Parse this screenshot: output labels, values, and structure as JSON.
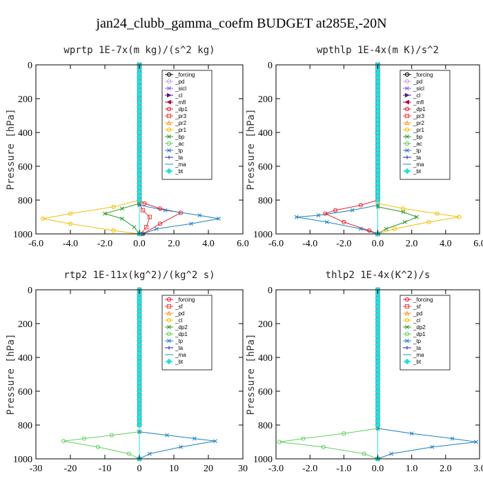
{
  "figure": {
    "title": "jan24_clubb_gamma_coefm  BUDGET at285E,-20N"
  },
  "chart_data": [
    {
      "type": "line",
      "title": "wprtp  1E-7x(m kg)/(s^2 kg)",
      "ylabel": "Pressure [hPa]",
      "xlim": [
        -6.0,
        6.0
      ],
      "xticks": [
        "-6.0",
        "-4.0",
        "-2.0",
        "0.0",
        "2.0",
        "4.0",
        "6.0"
      ],
      "ylim": [
        1000,
        0
      ],
      "yticks": [
        "0",
        "200",
        "400",
        "600",
        "800",
        "1000"
      ],
      "legend_position": "top-right",
      "series": [
        {
          "name": "_forcing",
          "color": "#000000",
          "marker": "o",
          "x": [
            0,
            0,
            0,
            0,
            0,
            0
          ],
          "y": [
            0,
            200,
            400,
            600,
            800,
            1000
          ]
        },
        {
          "name": "_pd",
          "color": "#c8a0e6",
          "marker": "o",
          "x": [
            0,
            0,
            0,
            0,
            0,
            0
          ],
          "y": [
            0,
            200,
            400,
            600,
            800,
            1000
          ]
        },
        {
          "name": "_sicl",
          "color": "#8a5fd0",
          "marker": "x",
          "x": [
            0,
            0,
            0,
            0,
            0,
            0
          ],
          "y": [
            0,
            200,
            400,
            600,
            800,
            1000
          ]
        },
        {
          "name": "_cl",
          "color": "#5a1a7a",
          "marker": ">",
          "x": [
            0,
            0,
            0,
            0,
            0,
            0
          ],
          "y": [
            0,
            200,
            400,
            600,
            800,
            1000
          ]
        },
        {
          "name": "_mfl",
          "color": "#b0004a",
          "marker": "<",
          "x": [
            0,
            0,
            0,
            0,
            0,
            0
          ],
          "y": [
            0,
            200,
            400,
            600,
            800,
            1000
          ]
        },
        {
          "name": "_dp1",
          "color": "#e0202a",
          "marker": "o",
          "x": [
            0,
            0,
            0.3,
            1.2,
            2.4,
            1.2,
            0.2
          ],
          "y": [
            0,
            800,
            820,
            850,
            875,
            940,
            1000
          ]
        },
        {
          "name": "_pr3",
          "color": "#e04040",
          "marker": "s",
          "x": [
            0,
            0,
            0.2,
            0.6,
            0.4,
            0.1
          ],
          "y": [
            0,
            820,
            860,
            900,
            960,
            1000
          ]
        },
        {
          "name": "_pr2",
          "color": "#f0a020",
          "marker": "^",
          "x": [
            0,
            0,
            0,
            0
          ],
          "y": [
            0,
            400,
            800,
            1000
          ]
        },
        {
          "name": "_pr1",
          "color": "#f0c000",
          "marker": "o",
          "x": [
            0,
            0,
            -1.5,
            -4.0,
            -5.6,
            -4.0,
            -1.5,
            0
          ],
          "y": [
            0,
            800,
            840,
            880,
            910,
            940,
            980,
            1000
          ]
        },
        {
          "name": "_bp",
          "color": "#2a9a2a",
          "marker": "x",
          "x": [
            0,
            0,
            -1.0,
            -2.0,
            -1.0,
            -0.3,
            0
          ],
          "y": [
            0,
            820,
            850,
            880,
            910,
            960,
            1000
          ]
        },
        {
          "name": "_ac",
          "color": "#60d060",
          "marker": "o",
          "x": [
            0,
            0,
            0,
            0
          ],
          "y": [
            0,
            400,
            800,
            1000
          ]
        },
        {
          "name": "_tp",
          "color": "#1a7fc0",
          "marker": "x",
          "x": [
            0,
            0,
            1.5,
            3.5,
            4.6,
            3.0,
            1.0,
            0.2
          ],
          "y": [
            0,
            830,
            860,
            890,
            910,
            940,
            970,
            1000
          ]
        },
        {
          "name": "_ta",
          "color": "#1a1ab0",
          "marker": "+",
          "x": [
            0,
            0,
            0,
            0
          ],
          "y": [
            0,
            400,
            800,
            1000
          ]
        },
        {
          "name": "_ma",
          "color": "#1a8fd0",
          "marker": "-",
          "x": [
            0,
            0,
            0,
            0
          ],
          "y": [
            0,
            400,
            800,
            1000
          ]
        },
        {
          "name": "_bt",
          "color": "#20e0e0",
          "marker": "D",
          "x": [
            0,
            0,
            0,
            0
          ],
          "y": [
            0,
            400,
            800,
            1000
          ]
        }
      ]
    },
    {
      "type": "line",
      "title": "wpthlp  1E-4x(m K)/s^2",
      "ylabel": "Pressure [hPa]",
      "xlim": [
        -6.0,
        6.0
      ],
      "xticks": [
        "-6.0",
        "-4.0",
        "-2.0",
        "0.0",
        "2.0",
        "4.0",
        "6.0"
      ],
      "ylim": [
        1000,
        0
      ],
      "yticks": [
        "0",
        "200",
        "400",
        "600",
        "800",
        "1000"
      ],
      "legend_position": "top-right",
      "series": [
        {
          "name": "_forcing",
          "color": "#000000",
          "marker": "o",
          "x": [
            0,
            0,
            0,
            0
          ],
          "y": [
            0,
            400,
            800,
            1000
          ]
        },
        {
          "name": "_pd",
          "color": "#c8a0e6",
          "marker": "o",
          "x": [
            0,
            0,
            0,
            0
          ],
          "y": [
            0,
            400,
            800,
            1000
          ]
        },
        {
          "name": "_sicl",
          "color": "#8a5fd0",
          "marker": "x",
          "x": [
            0,
            0,
            0,
            0
          ],
          "y": [
            0,
            400,
            800,
            1000
          ]
        },
        {
          "name": "_cl",
          "color": "#5a1a7a",
          "marker": ">",
          "x": [
            0,
            0,
            0,
            0
          ],
          "y": [
            0,
            400,
            800,
            1000
          ]
        },
        {
          "name": "_mfl",
          "color": "#b0004a",
          "marker": "<",
          "x": [
            0,
            0,
            0,
            0
          ],
          "y": [
            0,
            400,
            800,
            1000
          ]
        },
        {
          "name": "_dp1",
          "color": "#e0202a",
          "marker": "o",
          "x": [
            0,
            0,
            -1.0,
            -2.5,
            -3.1,
            -2.0,
            -0.5,
            0
          ],
          "y": [
            0,
            800,
            830,
            860,
            880,
            930,
            980,
            1000
          ]
        },
        {
          "name": "_pr3",
          "color": "#e04040",
          "marker": "s",
          "x": [
            0,
            0,
            0,
            0
          ],
          "y": [
            0,
            400,
            800,
            1000
          ]
        },
        {
          "name": "_pr2",
          "color": "#f0a020",
          "marker": "^",
          "x": [
            0,
            0,
            0,
            0
          ],
          "y": [
            0,
            400,
            800,
            1000
          ]
        },
        {
          "name": "_pr1",
          "color": "#f0c000",
          "marker": "o",
          "x": [
            0,
            0,
            1.5,
            3.5,
            4.8,
            3.0,
            1.0,
            0
          ],
          "y": [
            0,
            820,
            850,
            880,
            900,
            930,
            970,
            1000
          ]
        },
        {
          "name": "_bp",
          "color": "#2a9a2a",
          "marker": "x",
          "x": [
            0,
            0,
            1.5,
            2.3,
            1.6,
            0.5,
            0
          ],
          "y": [
            0,
            840,
            870,
            900,
            930,
            970,
            1000
          ]
        },
        {
          "name": "_ac",
          "color": "#60d060",
          "marker": "o",
          "x": [
            0,
            0,
            0,
            0
          ],
          "y": [
            0,
            400,
            800,
            1000
          ]
        },
        {
          "name": "_tp",
          "color": "#1a7fc0",
          "marker": "x",
          "x": [
            0,
            0,
            -1.5,
            -3.5,
            -4.8,
            -3.0,
            -1.0,
            0
          ],
          "y": [
            0,
            830,
            860,
            890,
            900,
            930,
            970,
            1000
          ]
        },
        {
          "name": "_ta",
          "color": "#1a1ab0",
          "marker": "+",
          "x": [
            0,
            0,
            0,
            0
          ],
          "y": [
            0,
            400,
            800,
            1000
          ]
        },
        {
          "name": "_ma",
          "color": "#1a8fd0",
          "marker": "-",
          "x": [
            0,
            0,
            0,
            0
          ],
          "y": [
            0,
            400,
            800,
            1000
          ]
        },
        {
          "name": "_bt",
          "color": "#20e0e0",
          "marker": "D",
          "x": [
            0,
            0,
            0,
            0
          ],
          "y": [
            0,
            400,
            800,
            1000
          ]
        }
      ]
    },
    {
      "type": "line",
      "title": "rtp2  1E-11x(kg^2)/(kg^2 s)",
      "ylabel": "Pressure [hPa]",
      "xlim": [
        -30,
        30
      ],
      "xticks": [
        "-30",
        "-20",
        "-10",
        "0",
        "10",
        "20",
        "30"
      ],
      "ylim": [
        1000,
        0
      ],
      "yticks": [
        "0",
        "200",
        "400",
        "600",
        "800",
        "1000"
      ],
      "legend_position": "top-right",
      "series": [
        {
          "name": "_forcing",
          "color": "#e0202a",
          "marker": "o",
          "x": [
            0,
            0,
            0,
            0,
            0,
            0
          ],
          "y": [
            0,
            200,
            400,
            600,
            800,
            1000
          ]
        },
        {
          "name": "_sf",
          "color": "#e04040",
          "marker": "s",
          "x": [
            0,
            0,
            0,
            0
          ],
          "y": [
            0,
            400,
            800,
            1000
          ]
        },
        {
          "name": "_pd",
          "color": "#f0a020",
          "marker": "^",
          "x": [
            0,
            0,
            0,
            0
          ],
          "y": [
            0,
            400,
            800,
            1000
          ]
        },
        {
          "name": "_cl",
          "color": "#f0c000",
          "marker": "o",
          "x": [
            0,
            0,
            0,
            0
          ],
          "y": [
            0,
            400,
            800,
            1000
          ]
        },
        {
          "name": "_dp2",
          "color": "#2a9a2a",
          "marker": "x",
          "x": [
            0,
            0,
            0,
            0
          ],
          "y": [
            0,
            400,
            800,
            1000
          ]
        },
        {
          "name": "_dp1",
          "color": "#60d060",
          "marker": "o",
          "x": [
            0,
            0,
            -8,
            -16,
            -22,
            -12,
            -3,
            0
          ],
          "y": [
            0,
            840,
            860,
            880,
            895,
            930,
            970,
            1000
          ]
        },
        {
          "name": "_tp",
          "color": "#1a7fc0",
          "marker": "x",
          "x": [
            0,
            0,
            8,
            16,
            22,
            12,
            3,
            0
          ],
          "y": [
            0,
            840,
            860,
            880,
            895,
            930,
            970,
            1000
          ]
        },
        {
          "name": "_ta",
          "color": "#1a1ab0",
          "marker": "+",
          "x": [
            0,
            0,
            0,
            0
          ],
          "y": [
            0,
            400,
            800,
            1000
          ]
        },
        {
          "name": "_ma",
          "color": "#1a8fd0",
          "marker": "-",
          "x": [
            0,
            0,
            0,
            0
          ],
          "y": [
            0,
            400,
            800,
            1000
          ]
        },
        {
          "name": "_bt",
          "color": "#20e0e0",
          "marker": "D",
          "x": [
            0,
            0,
            0,
            0
          ],
          "y": [
            0,
            400,
            800,
            1000
          ]
        }
      ]
    },
    {
      "type": "line",
      "title": "thlp2  1E-4x(K^2)/s",
      "ylabel": "Pressure [hPa]",
      "xlim": [
        -3.0,
        3.0
      ],
      "xticks": [
        "-3.0",
        "-2.0",
        "-1.0",
        "0.0",
        "1.0",
        "2.0",
        "3.0"
      ],
      "ylim": [
        1000,
        0
      ],
      "yticks": [
        "0",
        "200",
        "400",
        "600",
        "800",
        "1000"
      ],
      "legend_position": "top-right",
      "series": [
        {
          "name": "_forcing",
          "color": "#e0202a",
          "marker": "o",
          "x": [
            0,
            0,
            0,
            0,
            0,
            0
          ],
          "y": [
            0,
            200,
            400,
            600,
            800,
            1000
          ]
        },
        {
          "name": "_sf",
          "color": "#e04040",
          "marker": "s",
          "x": [
            0,
            0,
            0,
            0
          ],
          "y": [
            0,
            400,
            800,
            1000
          ]
        },
        {
          "name": "_pd",
          "color": "#f0a020",
          "marker": "^",
          "x": [
            0,
            0,
            0,
            0
          ],
          "y": [
            0,
            400,
            800,
            1000
          ]
        },
        {
          "name": "_cl",
          "color": "#f0c000",
          "marker": "o",
          "x": [
            0,
            0,
            0,
            0
          ],
          "y": [
            0,
            400,
            800,
            1000
          ]
        },
        {
          "name": "_dp2",
          "color": "#2a9a2a",
          "marker": "x",
          "x": [
            0,
            0,
            0,
            0
          ],
          "y": [
            0,
            400,
            800,
            1000
          ]
        },
        {
          "name": "_dp1",
          "color": "#60d060",
          "marker": "o",
          "x": [
            0,
            0,
            -1.0,
            -2.2,
            -2.9,
            -1.6,
            -0.4,
            0
          ],
          "y": [
            0,
            820,
            850,
            880,
            900,
            930,
            970,
            1000
          ]
        },
        {
          "name": "_tp",
          "color": "#1a7fc0",
          "marker": "x",
          "x": [
            0,
            0,
            1.0,
            2.2,
            2.9,
            1.6,
            0.4,
            0
          ],
          "y": [
            0,
            820,
            850,
            880,
            900,
            930,
            970,
            1000
          ]
        },
        {
          "name": "_ta",
          "color": "#1a1ab0",
          "marker": "+",
          "x": [
            0,
            0,
            0,
            0
          ],
          "y": [
            0,
            400,
            800,
            1000
          ]
        },
        {
          "name": "_ma",
          "color": "#1a8fd0",
          "marker": "-",
          "x": [
            0,
            0,
            0,
            0
          ],
          "y": [
            0,
            400,
            800,
            1000
          ]
        },
        {
          "name": "_bt",
          "color": "#20e0e0",
          "marker": "D",
          "x": [
            0,
            0,
            0,
            0
          ],
          "y": [
            0,
            400,
            800,
            1000
          ]
        }
      ]
    }
  ]
}
